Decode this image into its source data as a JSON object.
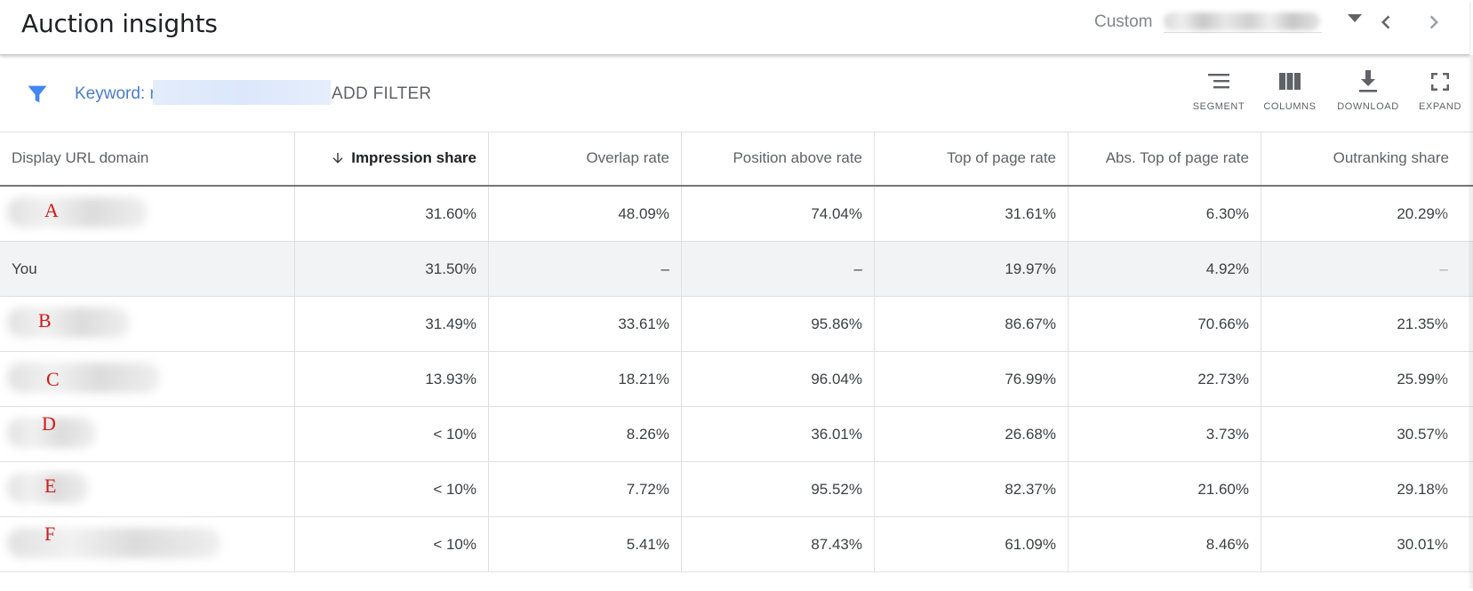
{
  "header": {
    "title": "Auction insights",
    "date_range_label": "Custom",
    "date_range_value_redacted": true
  },
  "filter_bar": {
    "keyword_label": "Keyword: r",
    "add_filter_label": "ADD FILTER"
  },
  "toolbar": {
    "segment_label": "SEGMENT",
    "columns_label": "COLUMNS",
    "download_label": "DOWNLOAD",
    "expand_label": "EXPAND"
  },
  "table": {
    "columns": [
      "Display URL domain",
      "Impression share",
      "Overlap rate",
      "Position above rate",
      "Top of page rate",
      "Abs. Top of page rate",
      "Outranking share"
    ],
    "sorted_column": "Impression share",
    "sort_direction": "descending",
    "rows": [
      {
        "domain": "A",
        "redacted": true,
        "impression_share": "31.60%",
        "overlap_rate": "48.09%",
        "position_above_rate": "74.04%",
        "top_of_page_rate": "31.61%",
        "abs_top_of_page_rate": "6.30%",
        "outranking_share": "20.29%"
      },
      {
        "domain": "You",
        "redacted": false,
        "impression_share": "31.50%",
        "overlap_rate": "–",
        "position_above_rate": "–",
        "top_of_page_rate": "19.97%",
        "abs_top_of_page_rate": "4.92%",
        "outranking_share": "–"
      },
      {
        "domain": "B",
        "redacted": true,
        "impression_share": "31.49%",
        "overlap_rate": "33.61%",
        "position_above_rate": "95.86%",
        "top_of_page_rate": "86.67%",
        "abs_top_of_page_rate": "70.66%",
        "outranking_share": "21.35%"
      },
      {
        "domain": "C",
        "redacted": true,
        "impression_share": "13.93%",
        "overlap_rate": "18.21%",
        "position_above_rate": "96.04%",
        "top_of_page_rate": "76.99%",
        "abs_top_of_page_rate": "22.73%",
        "outranking_share": "25.99%"
      },
      {
        "domain": "D",
        "redacted": true,
        "impression_share": "< 10%",
        "overlap_rate": "8.26%",
        "position_above_rate": "36.01%",
        "top_of_page_rate": "26.68%",
        "abs_top_of_page_rate": "3.73%",
        "outranking_share": "30.57%"
      },
      {
        "domain": "E",
        "redacted": true,
        "impression_share": "< 10%",
        "overlap_rate": "7.72%",
        "position_above_rate": "95.52%",
        "top_of_page_rate": "82.37%",
        "abs_top_of_page_rate": "21.60%",
        "outranking_share": "29.18%"
      },
      {
        "domain": "F",
        "redacted": true,
        "impression_share": "< 10%",
        "overlap_rate": "5.41%",
        "position_above_rate": "87.43%",
        "top_of_page_rate": "61.09%",
        "abs_top_of_page_rate": "8.46%",
        "outranking_share": "30.01%"
      }
    ]
  },
  "colors": {
    "accent_blue": "#4285f4",
    "keyword_link": "#4a7dc9",
    "annotation_red": "#d11a1a",
    "highlight_row": "#f1f3f4"
  },
  "icons": [
    "filter-icon",
    "chevron-left-icon",
    "chevron-right-icon",
    "dropdown-arrow-icon",
    "segment-icon",
    "columns-icon",
    "download-icon",
    "expand-icon",
    "sort-down-arrow-icon"
  ]
}
